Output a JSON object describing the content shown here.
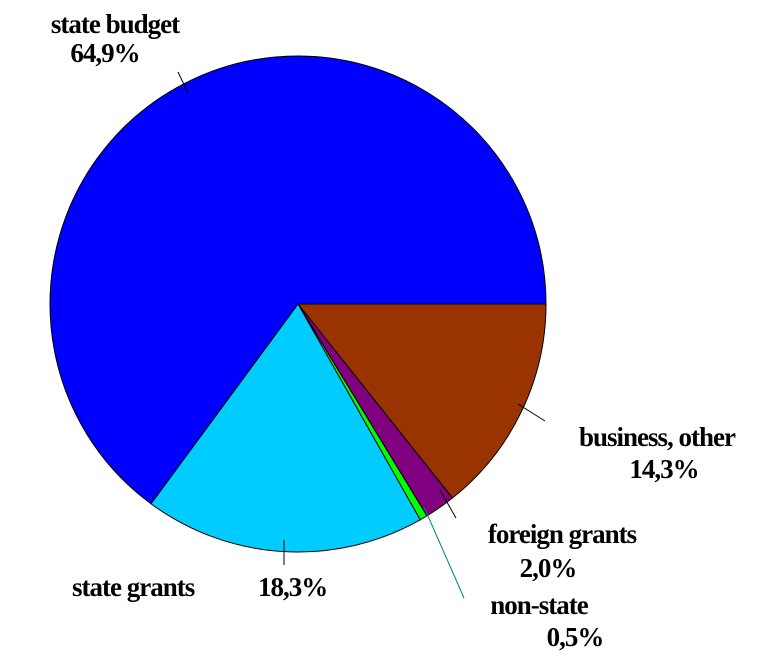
{
  "chart_data": {
    "type": "pie",
    "categories": [
      "business, other",
      "foreign grants",
      "non-state",
      "state grants",
      "state budget"
    ],
    "values": [
      14.3,
      2.0,
      0.5,
      18.3,
      64.9
    ],
    "value_labels": [
      "14,3%",
      "2,0%",
      "0,5%",
      "18,3%",
      "64,9%"
    ],
    "colors": [
      "#993300",
      "#800080",
      "#00ff00",
      "#00ccff",
      "#0000ff"
    ]
  }
}
